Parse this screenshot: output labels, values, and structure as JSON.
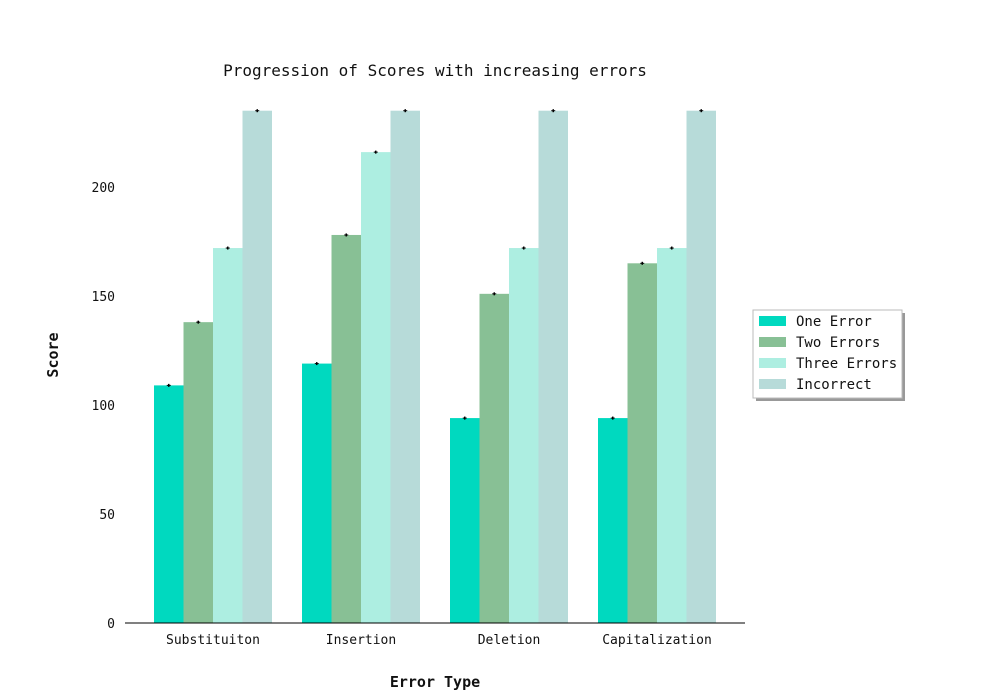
{
  "chart_data": {
    "type": "bar",
    "title": "Progression of Scores with increasing errors",
    "xlabel": "Error Type",
    "ylabel": "Score",
    "categories": [
      "Substituiton",
      "Insertion",
      "Deletion",
      "Capitalization"
    ],
    "series": [
      {
        "name": "One Error",
        "values": [
          109,
          119,
          94,
          94
        ],
        "color": "#00d9bf"
      },
      {
        "name": "Two Errors",
        "values": [
          138,
          178,
          151,
          165
        ],
        "color": "#88c095"
      },
      {
        "name": "Three Errors",
        "values": [
          172,
          216,
          172,
          172
        ],
        "color": "#adeee1"
      },
      {
        "name": "Incorrect",
        "values": [
          235,
          235,
          235,
          235
        ],
        "color": "#b7dbd9"
      }
    ],
    "yticks": [
      0,
      50,
      100,
      150,
      200
    ],
    "ylim": [
      0,
      235
    ],
    "legend_position": "right",
    "grid": false,
    "error_bars": true
  }
}
